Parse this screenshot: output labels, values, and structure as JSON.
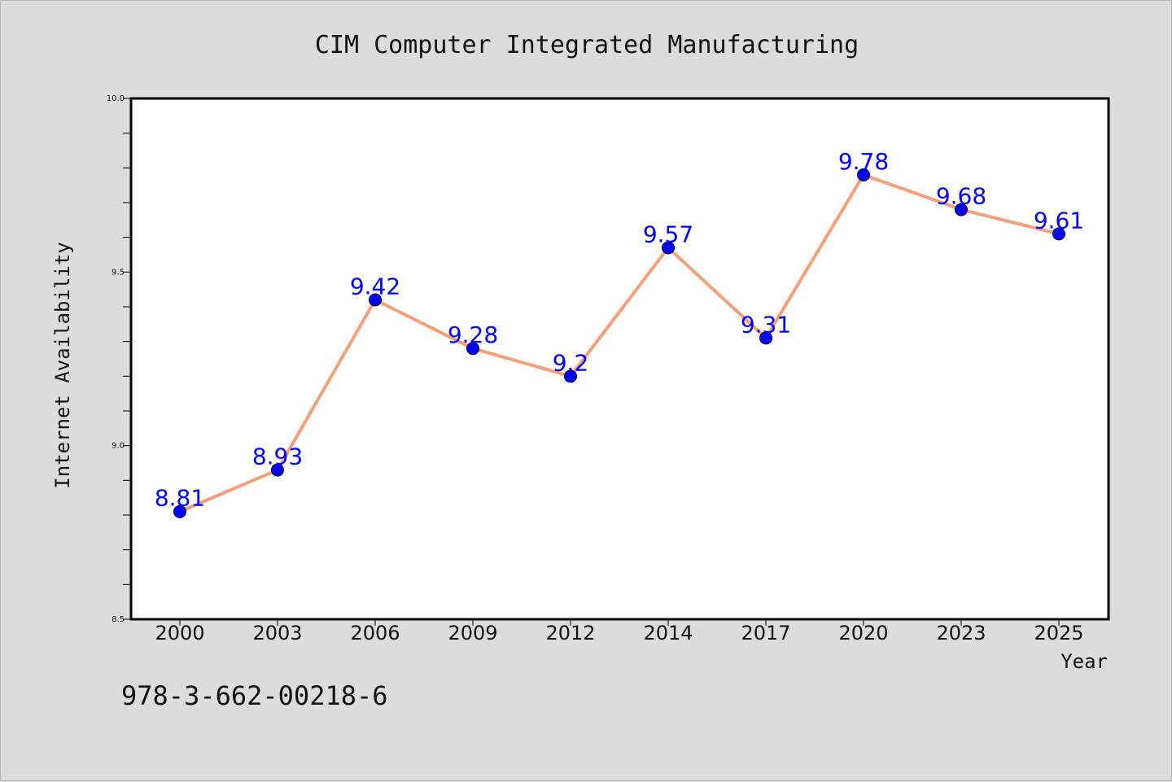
{
  "chart_data": {
    "type": "line",
    "title": "CIM Computer Integrated Manufacturing",
    "xlabel": "Year",
    "ylabel": "Internet Availability",
    "categories": [
      "2000",
      "2003",
      "2006",
      "2009",
      "2012",
      "2014",
      "2017",
      "2020",
      "2023",
      "2025"
    ],
    "series": [
      {
        "values": [
          8.81,
          8.93,
          9.42,
          9.28,
          9.2,
          9.57,
          9.31,
          9.78,
          9.68,
          9.61
        ],
        "data_labels": [
          "8.81",
          "8.93",
          "9.42",
          "9.28",
          "9.2",
          "9.57",
          "9.31",
          "9.78",
          "9.68",
          "9.61"
        ]
      }
    ],
    "ylim": [
      8.5,
      10.0
    ],
    "yticks": [
      "8.5",
      "9.0",
      "9.5",
      "10.0"
    ],
    "grid": false,
    "line_color": "#f4a07a",
    "marker_color": "#0000ff",
    "label_color": "#0000ff"
  },
  "footer": {
    "isbn": "978-3-662-00218-6"
  }
}
